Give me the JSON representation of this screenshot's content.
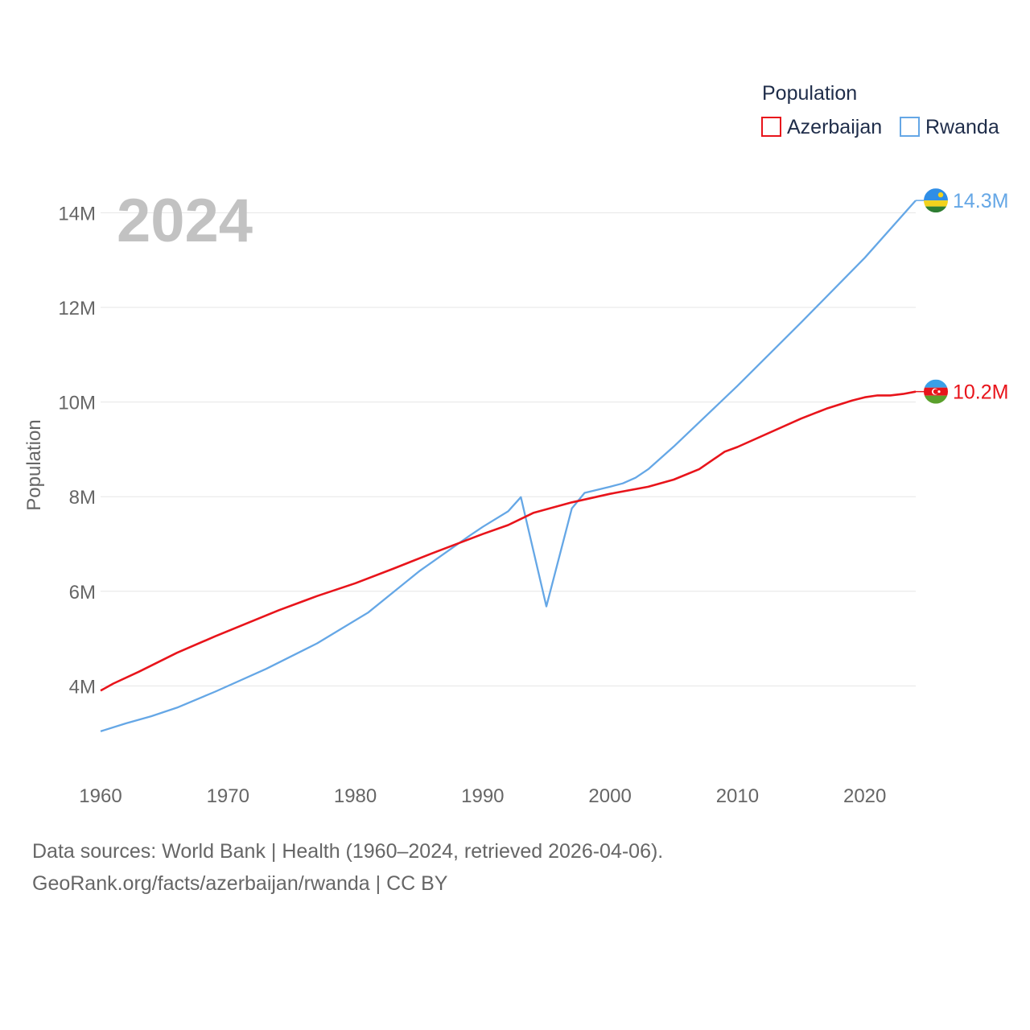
{
  "chart_data": {
    "type": "line",
    "legend_title": "Population",
    "ylabel": "Population",
    "year_label": "2024",
    "x_ticks": [
      1960,
      1970,
      1980,
      1990,
      2000,
      2010,
      2020
    ],
    "x_tick_labels": [
      "1960",
      "1970",
      "1980",
      "1990",
      "2000",
      "2010",
      "2020"
    ],
    "xlim": [
      1960,
      2024
    ],
    "y_ticks": [
      4000000,
      6000000,
      8000000,
      10000000,
      12000000,
      14000000
    ],
    "y_tick_labels": [
      "4M",
      "6M",
      "8M",
      "10M",
      "12M",
      "14M"
    ],
    "ylim": [
      2000000,
      14500000
    ],
    "grid": true,
    "legend_position": "top-right",
    "series": [
      {
        "name": "Azerbaijan",
        "color": "#e8141b",
        "end_label": "10.2M",
        "flag_icon": "azerbaijan-flag-icon",
        "x": [
          1960,
          1961,
          1963,
          1966,
          1969,
          1974,
          1977,
          1980,
          1983,
          1986,
          1990,
          1992,
          1994,
          1997,
          2000,
          2003,
          2005,
          2007,
          2009,
          2010,
          2015,
          2017,
          2019,
          2020,
          2021,
          2022,
          2023,
          2024
        ],
        "values": [
          3900000,
          4050000,
          4300000,
          4700000,
          5050000,
          5600000,
          5900000,
          6170000,
          6480000,
          6800000,
          7210000,
          7400000,
          7660000,
          7880000,
          8060000,
          8210000,
          8360000,
          8580000,
          8950000,
          9050000,
          9650000,
          9860000,
          10030000,
          10100000,
          10140000,
          10140000,
          10170000,
          10220000
        ]
      },
      {
        "name": "Rwanda",
        "color": "#65a7e6",
        "end_label": "14.3M",
        "flag_icon": "rwanda-flag-icon",
        "x": [
          1960,
          1962,
          1964,
          1966,
          1969,
          1973,
          1977,
          1981,
          1985,
          1989,
          1990,
          1992,
          1993,
          1995,
          1997,
          1998,
          2000,
          2001,
          2002,
          2003,
          2005,
          2010,
          2015,
          2020,
          2024
        ],
        "values": [
          3040000,
          3210000,
          3360000,
          3540000,
          3880000,
          4360000,
          4900000,
          5550000,
          6420000,
          7180000,
          7360000,
          7690000,
          7990000,
          5680000,
          7750000,
          8080000,
          8210000,
          8280000,
          8400000,
          8580000,
          9060000,
          10340000,
          11680000,
          13050000,
          14260000
        ]
      }
    ]
  },
  "footer": {
    "sources": "Data sources: World Bank | Health (1960–2024, retrieved 2026-04-06).",
    "link": "GeoRank.org/facts/azerbaijan/rwanda | CC BY"
  }
}
